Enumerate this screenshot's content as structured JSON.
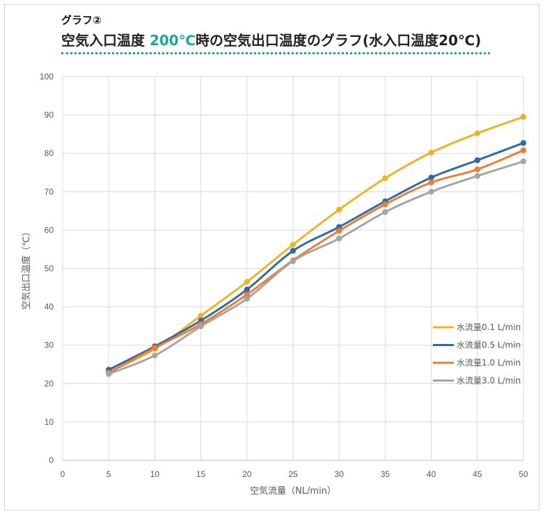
{
  "header": {
    "kicker": "グラフ②",
    "title_part1": "空気入口温度 ",
    "title_accent": "200℃",
    "title_part2": "時の空気出口温度のグラフ(水入口温度20℃)",
    "accent_color": "#1aa79b"
  },
  "chart_data": {
    "type": "scatter",
    "xlabel": "空気流量（NL/min）",
    "ylabel": "空気出口温度（℃）",
    "xlim": [
      0,
      50
    ],
    "ylim": [
      0,
      100
    ],
    "xticks": [
      0,
      5,
      10,
      15,
      20,
      25,
      30,
      35,
      40,
      45,
      50
    ],
    "yticks": [
      0,
      10,
      20,
      30,
      40,
      50,
      60,
      70,
      80,
      90,
      100
    ],
    "grid": true,
    "legend_position": "right",
    "trendline": "smooth",
    "x": [
      5,
      10,
      15,
      20,
      25,
      30,
      35,
      40,
      45,
      50
    ],
    "series": [
      {
        "name": "水流量0.1 L/min",
        "color": "#f0b323",
        "values": [
          23.0,
          29.0,
          37.7,
          46.5,
          56.2,
          65.3,
          73.5,
          80.2,
          85.2,
          89.5
        ]
      },
      {
        "name": "水流量0.5 L/min",
        "color": "#2e6ba8",
        "values": [
          23.6,
          29.7,
          36.4,
          44.5,
          54.6,
          60.8,
          67.5,
          73.7,
          78.2,
          82.7
        ]
      },
      {
        "name": "水流量1.0 L/min",
        "color": "#ed7d31",
        "values": [
          22.8,
          29.3,
          35.5,
          43.2,
          52.1,
          59.8,
          66.7,
          72.4,
          75.8,
          80.8
        ]
      },
      {
        "name": "水流量3.0 L/min",
        "color": "#a5a5a5",
        "values": [
          22.5,
          27.3,
          34.9,
          42.1,
          51.9,
          57.8,
          64.7,
          70.0,
          74.1,
          77.9
        ]
      }
    ]
  }
}
